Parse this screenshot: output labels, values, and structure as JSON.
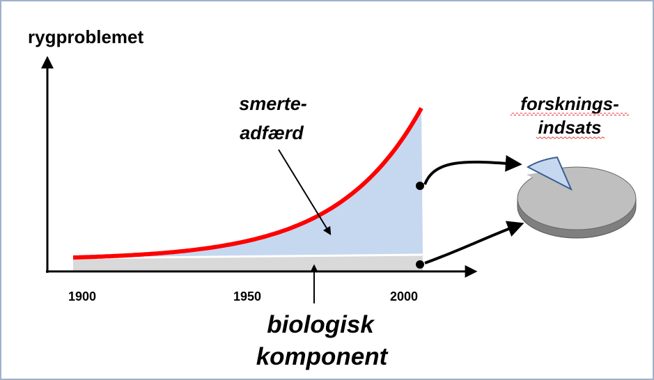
{
  "y_axis_label": "rygproblemet",
  "x_axis_ticks": [
    "1900",
    "1950",
    "2000"
  ],
  "curve_label": [
    "smerte-",
    "adfærd"
  ],
  "base_label": [
    "biologisk",
    "komponent"
  ],
  "pie_label": [
    "forsknings-",
    "indsats"
  ]
}
